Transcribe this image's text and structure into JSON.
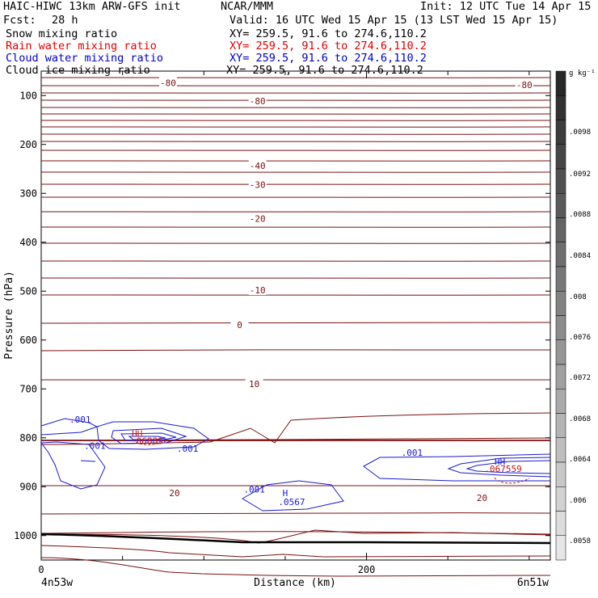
{
  "header": {
    "title_left": "HAIC-HIWC 13km ARW-GFS init",
    "title_center": "NCAR/MMM",
    "init": "Init: 12 UTC Tue 14 Apr 15",
    "fcst_label": "Fcst:",
    "fcst_value": "28 h",
    "valid": "Valid: 16 UTC Wed 15 Apr 15 (13 LST Wed 15 Apr 15)"
  },
  "fields": [
    {
      "name": "Snow mixing ratio",
      "xy": "XY= 259.5, 91.6 to 274.6,110.2",
      "color": "#000000"
    },
    {
      "name": "Rain water mixing ratio",
      "xy": "XY= 259.5, 91.6 to 274.6,110.2",
      "color": "#e00000"
    },
    {
      "name": "Cloud water mixing ratio",
      "xy": "XY= 259.5, 91.6 to 274.6,110.2",
      "color": "#0000cc"
    },
    {
      "name": "Cloud ice mixing ratio",
      "xy": "XY= 259.5, 91.6 to 274.6,110.2",
      "color": "#000000"
    }
  ],
  "colors": {
    "temperature": "#7a1010",
    "cloud_water": "#1a1ad0",
    "rain": "#c01818",
    "terrain": "#000000"
  },
  "chart_data": {
    "type": "contour",
    "ylabel": "Pressure (hPa)",
    "xlabel": "Distance (km)",
    "x_start_label": "4n53w",
    "x_end_label": "6n51w",
    "xlim": [
      0,
      313
    ],
    "ylim": [
      1050,
      50
    ],
    "x_ticks": [
      0,
      200
    ],
    "y_ticks": [
      100,
      200,
      300,
      400,
      500,
      600,
      700,
      800,
      900,
      1000
    ],
    "temperature_contours": {
      "labels": [
        {
          "text": "-80",
          "x": 78,
          "p": 74
        },
        {
          "text": "-80",
          "x": 133,
          "p": 111
        },
        {
          "text": "-80",
          "x": 297,
          "p": 78
        },
        {
          "text": "-40",
          "x": 133,
          "p": 243
        },
        {
          "text": "-30",
          "x": 133,
          "p": 282
        },
        {
          "text": "-20",
          "x": 133,
          "p": 352
        },
        {
          "text": "-10",
          "x": 133,
          "p": 498
        },
        {
          "text": "0",
          "x": 122,
          "p": 569
        },
        {
          "text": "10",
          "x": 131,
          "p": 690
        },
        {
          "text": "20",
          "x": 82,
          "p": 913
        },
        {
          "text": "20",
          "x": 271,
          "p": 923
        }
      ]
    },
    "colorbar": {
      "unit": "g kg⁻¹",
      "ticks": [
        ".0098",
        ".0092",
        ".0088",
        ".0084",
        ".008",
        ".0076",
        ".0072",
        ".0068",
        ".0064",
        ".006",
        ".0058"
      ]
    },
    "annotations": [
      {
        "text": ".001",
        "color": "#1a1ad0",
        "x": 24,
        "p": 762
      },
      {
        "text": ".001",
        "color": "#1a1ad0",
        "x": 33,
        "p": 816
      },
      {
        "text": ".001",
        "color": "#1a1ad0",
        "x": 90,
        "p": 822
      },
      {
        "text": ".001",
        "color": "#1a1ad0",
        "x": 228,
        "p": 830
      },
      {
        "text": ".001",
        "color": "#1a1ad0",
        "x": 131,
        "p": 905
      },
      {
        "text": "HH",
        "color": "#c01818",
        "x": 59,
        "p": 791
      },
      {
        "text": ".06889",
        "color": "#c01818",
        "x": 65,
        "p": 806
      },
      {
        "text": "H",
        "color": "#1a1ad0",
        "x": 150,
        "p": 913
      },
      {
        "text": ".0567",
        "color": "#1a1ad0",
        "x": 154,
        "p": 931
      },
      {
        "text": "HH",
        "color": "#1a1ad0",
        "x": 282,
        "p": 848
      },
      {
        "text": ".067559",
        "color": "#c01818",
        "x": 284,
        "p": 863
      }
    ]
  }
}
